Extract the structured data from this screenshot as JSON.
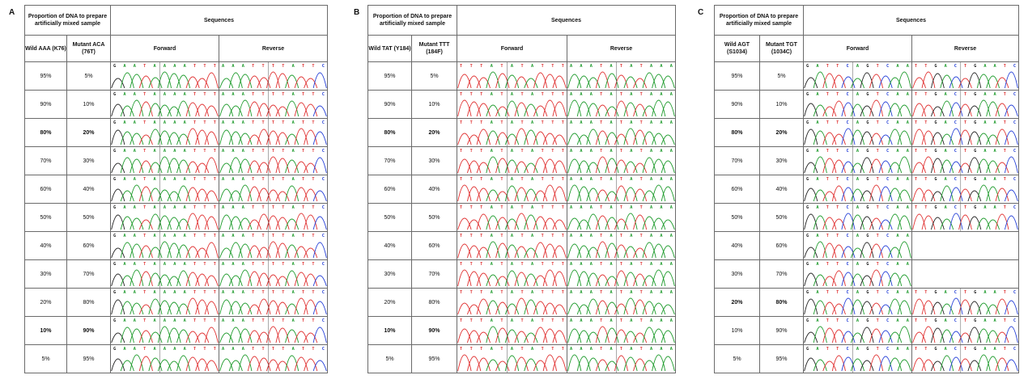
{
  "colors": {
    "A": "#1c9a2a",
    "T": "#e03030",
    "G": "#222222",
    "C": "#2640d8",
    "border": "#6b6b6b"
  },
  "headers": {
    "proportion": "Proportion of DNA to prepare artificially mixed sample",
    "sequences": "Sequences",
    "forward": "Forward",
    "reverse": "Reverse"
  },
  "panels": [
    {
      "letter": "A",
      "wild_label": "Wild AAA (K76)",
      "mutant_label": "Mutant ACA (76T)",
      "forward_bases": [
        "G",
        "A",
        "A",
        "T",
        "A",
        "A",
        "A",
        "A",
        "T",
        "T",
        "T"
      ],
      "reverse_bases": [
        "A",
        "A",
        "A",
        "T",
        "T",
        "T",
        "T",
        "A",
        "T",
        "T",
        "C"
      ],
      "rows": [
        {
          "wild": "95%",
          "mutant": "5%",
          "bold": false,
          "fwd": true,
          "rev": true
        },
        {
          "wild": "90%",
          "mutant": "10%",
          "bold": false,
          "fwd": true,
          "rev": true
        },
        {
          "wild": "80%",
          "mutant": "20%",
          "bold": true,
          "fwd": true,
          "rev": true
        },
        {
          "wild": "70%",
          "mutant": "30%",
          "bold": false,
          "fwd": true,
          "rev": true
        },
        {
          "wild": "60%",
          "mutant": "40%",
          "bold": false,
          "fwd": true,
          "rev": true
        },
        {
          "wild": "50%",
          "mutant": "50%",
          "bold": false,
          "fwd": true,
          "rev": true
        },
        {
          "wild": "40%",
          "mutant": "60%",
          "bold": false,
          "fwd": true,
          "rev": true
        },
        {
          "wild": "30%",
          "mutant": "70%",
          "bold": false,
          "fwd": true,
          "rev": true
        },
        {
          "wild": "20%",
          "mutant": "80%",
          "bold": false,
          "fwd": true,
          "rev": true
        },
        {
          "wild": "10%",
          "mutant": "90%",
          "bold": true,
          "fwd": true,
          "rev": true
        },
        {
          "wild": "5%",
          "mutant": "95%",
          "bold": false,
          "fwd": true,
          "rev": true
        }
      ]
    },
    {
      "letter": "B",
      "wild_label": "Wild TAT (Y184)",
      "mutant_label": "Mutant TTT (184F)",
      "forward_bases": [
        "T",
        "T",
        "T",
        "A",
        "T",
        "A",
        "T",
        "A",
        "T",
        "T",
        "T"
      ],
      "reverse_bases": [
        "A",
        "A",
        "A",
        "T",
        "A",
        "T",
        "A",
        "T",
        "A",
        "A",
        "A"
      ],
      "rows": [
        {
          "wild": "95%",
          "mutant": "5%",
          "bold": false,
          "fwd": true,
          "rev": true
        },
        {
          "wild": "90%",
          "mutant": "10%",
          "bold": false,
          "fwd": true,
          "rev": true
        },
        {
          "wild": "80%",
          "mutant": "20%",
          "bold": true,
          "fwd": true,
          "rev": true
        },
        {
          "wild": "70%",
          "mutant": "30%",
          "bold": false,
          "fwd": true,
          "rev": true
        },
        {
          "wild": "60%",
          "mutant": "40%",
          "bold": false,
          "fwd": true,
          "rev": true
        },
        {
          "wild": "50%",
          "mutant": "50%",
          "bold": false,
          "fwd": true,
          "rev": true
        },
        {
          "wild": "40%",
          "mutant": "60%",
          "bold": false,
          "fwd": true,
          "rev": true
        },
        {
          "wild": "30%",
          "mutant": "70%",
          "bold": false,
          "fwd": true,
          "rev": true
        },
        {
          "wild": "20%",
          "mutant": "80%",
          "bold": false,
          "fwd": true,
          "rev": true
        },
        {
          "wild": "10%",
          "mutant": "90%",
          "bold": true,
          "fwd": true,
          "rev": true
        },
        {
          "wild": "5%",
          "mutant": "95%",
          "bold": false,
          "fwd": true,
          "rev": true
        }
      ]
    },
    {
      "letter": "C",
      "wild_label": "Wild AGT (S1034)",
      "mutant_label": "Mutant TGT (1034C)",
      "forward_bases": [
        "G",
        "A",
        "T",
        "T",
        "C",
        "A",
        "G",
        "T",
        "C",
        "A",
        "A"
      ],
      "reverse_bases": [
        "T",
        "T",
        "G",
        "A",
        "C",
        "T",
        "G",
        "A",
        "A",
        "T",
        "C"
      ],
      "rows": [
        {
          "wild": "95%",
          "mutant": "5%",
          "bold": false,
          "fwd": true,
          "rev": true
        },
        {
          "wild": "90%",
          "mutant": "10%",
          "bold": false,
          "fwd": true,
          "rev": true
        },
        {
          "wild": "80%",
          "mutant": "20%",
          "bold": true,
          "fwd": true,
          "rev": true
        },
        {
          "wild": "70%",
          "mutant": "30%",
          "bold": false,
          "fwd": true,
          "rev": true
        },
        {
          "wild": "60%",
          "mutant": "40%",
          "bold": false,
          "fwd": true,
          "rev": true
        },
        {
          "wild": "50%",
          "mutant": "50%",
          "bold": false,
          "fwd": true,
          "rev": true
        },
        {
          "wild": "40%",
          "mutant": "60%",
          "bold": false,
          "fwd": true,
          "rev": false
        },
        {
          "wild": "30%",
          "mutant": "70%",
          "bold": false,
          "fwd": true,
          "rev": false
        },
        {
          "wild": "20%",
          "mutant": "80%",
          "bold": true,
          "fwd": true,
          "rev": true
        },
        {
          "wild": "10%",
          "mutant": "90%",
          "bold": false,
          "fwd": true,
          "rev": true
        },
        {
          "wild": "5%",
          "mutant": "95%",
          "bold": false,
          "fwd": true,
          "rev": true
        }
      ]
    }
  ]
}
